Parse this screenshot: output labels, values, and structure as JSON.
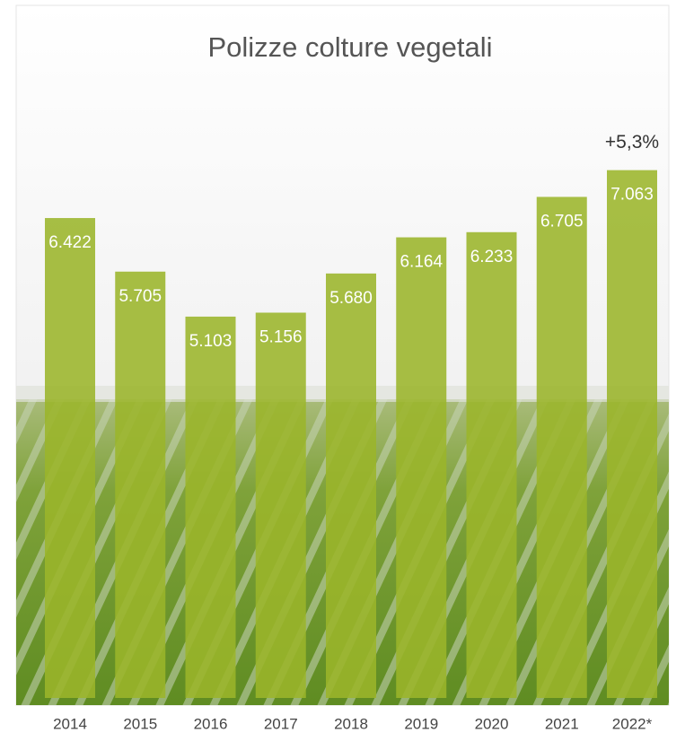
{
  "chart_data": {
    "type": "bar",
    "title": "Polizze colture vegetali",
    "categories": [
      "2014",
      "2015",
      "2016",
      "2017",
      "2018",
      "2019",
      "2020",
      "2021",
      "2022*"
    ],
    "values": [
      6422,
      5705,
      5103,
      5156,
      5680,
      6164,
      6233,
      6705,
      7063
    ],
    "value_labels": [
      "6.422",
      "5.705",
      "5.103",
      "5.156",
      "5.680",
      "6.164",
      "6.233",
      "6.705",
      "7.063"
    ],
    "annotation": "+5,3%",
    "color": "#9bb52a",
    "ylim": [
      0,
      8000
    ]
  }
}
